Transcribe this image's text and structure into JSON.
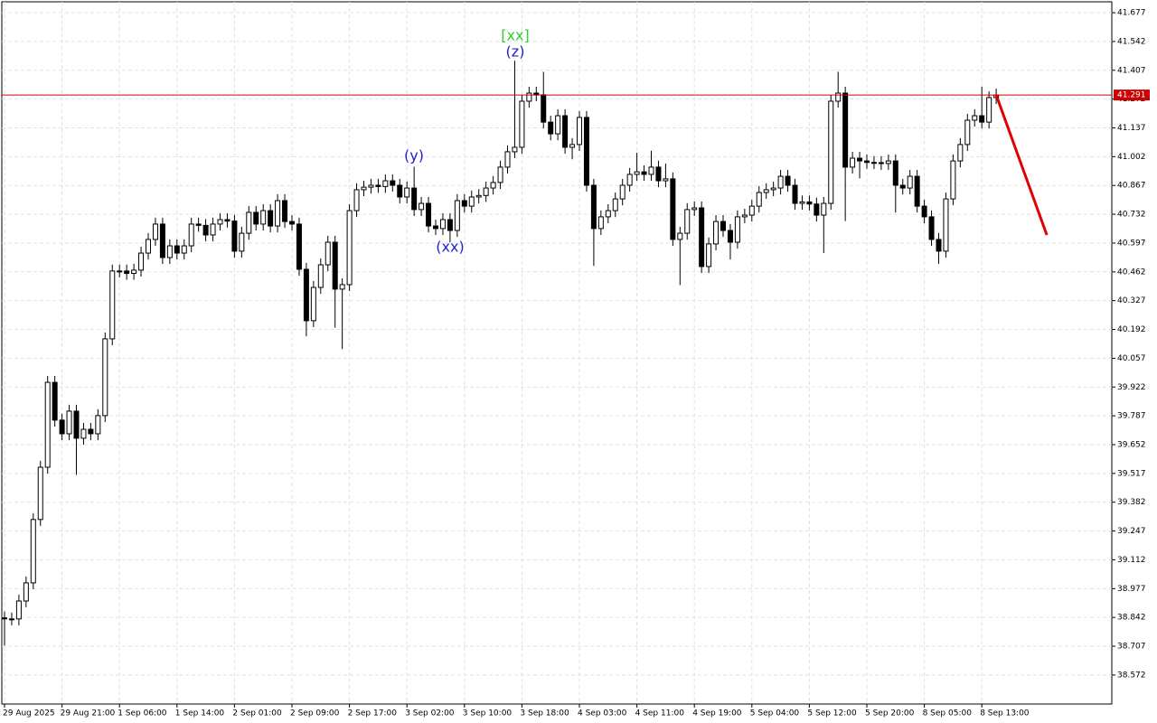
{
  "chart_data": {
    "type": "candlestick",
    "categories": [
      "29 Aug 2025",
      null,
      null,
      null,
      null,
      null,
      null,
      null,
      "29 Aug 21:00",
      null,
      null,
      null,
      null,
      null,
      null,
      null,
      "1 Sep 06:00",
      null,
      null,
      null,
      null,
      null,
      null,
      null,
      "1 Sep 14:00",
      null,
      null,
      null,
      null,
      null,
      null,
      null,
      "2 Sep 01:00",
      null,
      null,
      null,
      null,
      null,
      null,
      null,
      "2 Sep 09:00",
      null,
      null,
      null,
      null,
      null,
      null,
      null,
      "2 Sep 17:00",
      null,
      null,
      null,
      null,
      null,
      null,
      null,
      "3 Sep 02:00",
      null,
      null,
      null,
      null,
      null,
      null,
      null,
      "3 Sep 10:00",
      null,
      null,
      null,
      null,
      null,
      null,
      null,
      "3 Sep 18:00",
      null,
      null,
      null,
      null,
      null,
      null,
      null,
      "4 Sep 03:00",
      null,
      null,
      null,
      null,
      null,
      null,
      null,
      "4 Sep 11:00",
      null,
      null,
      null,
      null,
      null,
      null,
      null,
      "4 Sep 19:00",
      null,
      null,
      null,
      null,
      null,
      null,
      null,
      "5 Sep 04:00",
      null,
      null,
      null,
      null,
      null,
      null,
      null,
      "5 Sep 12:00",
      null,
      null,
      null,
      null,
      null,
      null,
      null,
      "5 Sep 20:00",
      null,
      null,
      null,
      null,
      null,
      null,
      null,
      "8 Sep 05:00",
      null,
      null,
      null,
      null,
      null,
      null,
      null,
      "8 Sep 13:00",
      null,
      null
    ],
    "open": [
      38.84,
      38.835,
      38.835,
      38.919,
      39.004,
      39.301,
      39.546,
      39.944,
      39.767,
      39.703,
      39.809,
      39.682,
      39.724,
      39.703,
      39.788,
      40.148,
      40.466,
      40.466,
      40.455,
      40.47,
      40.55,
      40.614,
      40.686,
      40.529,
      40.584,
      40.55,
      40.584,
      40.686,
      40.68,
      40.635,
      40.686,
      40.707,
      40.7,
      40.559,
      40.643,
      40.741,
      40.686,
      40.749,
      40.677,
      40.796,
      40.698,
      40.686,
      40.474,
      40.233,
      40.389,
      40.495,
      40.601,
      40.381,
      40.402,
      40.749,
      40.847,
      40.859,
      40.868,
      40.862,
      40.889,
      40.868,
      40.813,
      40.855,
      40.754,
      40.783,
      40.677,
      40.665,
      40.707,
      40.656,
      40.796,
      40.77,
      40.813,
      40.82,
      40.855,
      40.881,
      40.953,
      41.025,
      41.046,
      41.262,
      41.3,
      41.292,
      41.164,
      41.109,
      41.194,
      41.046,
      41.059,
      41.186,
      40.868,
      40.665,
      40.72,
      40.749,
      40.804,
      40.868,
      40.919,
      40.931,
      40.919,
      40.953,
      40.889,
      40.898,
      40.614,
      40.643,
      40.754,
      40.762,
      40.487,
      40.593,
      40.698,
      40.656,
      40.601,
      40.72,
      40.728,
      40.77,
      40.834,
      40.847,
      40.855,
      40.91,
      40.868,
      40.783,
      40.79,
      40.78,
      40.728,
      40.783,
      41.262,
      41.3,
      40.953,
      40.995,
      40.982,
      40.975,
      40.974,
      40.97,
      40.982,
      40.868,
      40.855,
      40.91,
      40.77,
      40.72,
      40.614,
      40.559,
      40.804,
      40.982,
      41.059,
      41.173,
      41.194,
      41.164,
      41.279
    ],
    "high": [
      38.87,
      38.865,
      38.949,
      39.034,
      39.331,
      39.576,
      39.974,
      39.974,
      39.797,
      39.839,
      39.839,
      39.754,
      39.754,
      39.818,
      40.178,
      40.496,
      40.496,
      40.496,
      40.5,
      40.58,
      40.644,
      40.716,
      40.716,
      40.614,
      40.614,
      40.614,
      40.716,
      40.716,
      40.71,
      40.716,
      40.737,
      40.737,
      40.73,
      40.673,
      40.771,
      40.771,
      40.779,
      40.779,
      40.826,
      40.826,
      40.728,
      40.716,
      40.504,
      40.419,
      40.525,
      40.631,
      40.631,
      40.432,
      40.779,
      40.877,
      40.889,
      40.898,
      40.898,
      40.919,
      40.919,
      40.898,
      40.885,
      40.955,
      40.813,
      40.813,
      40.707,
      40.737,
      40.737,
      40.826,
      40.826,
      40.843,
      40.85,
      40.885,
      40.911,
      40.983,
      41.055,
      41.452,
      41.292,
      41.33,
      41.33,
      41.4,
      41.194,
      41.224,
      41.224,
      41.089,
      41.216,
      41.216,
      40.898,
      40.75,
      40.779,
      40.834,
      40.898,
      40.949,
      41.02,
      40.961,
      41.03,
      40.983,
      40.97,
      40.928,
      40.673,
      40.784,
      40.792,
      40.792,
      40.623,
      40.728,
      40.728,
      40.686,
      40.75,
      40.758,
      40.8,
      40.864,
      40.877,
      40.885,
      40.94,
      40.94,
      40.898,
      40.82,
      40.82,
      40.81,
      40.813,
      41.292,
      41.4,
      41.33,
      41.025,
      41.025,
      41.012,
      41.005,
      41.004,
      41.012,
      41.012,
      40.898,
      40.94,
      40.94,
      40.8,
      40.75,
      40.644,
      40.834,
      41.012,
      41.089,
      41.203,
      41.224,
      41.33,
      41.309,
      41.321
    ],
    "low": [
      38.71,
      38.805,
      38.805,
      38.889,
      38.974,
      39.271,
      39.516,
      39.737,
      39.673,
      39.673,
      39.51,
      39.652,
      39.673,
      39.673,
      39.758,
      40.118,
      40.436,
      40.425,
      40.425,
      40.44,
      40.52,
      40.584,
      40.499,
      40.499,
      40.52,
      40.52,
      40.554,
      40.65,
      40.605,
      40.605,
      40.656,
      40.67,
      40.529,
      40.529,
      40.613,
      40.656,
      40.656,
      40.647,
      40.647,
      40.668,
      40.656,
      40.444,
      40.16,
      40.203,
      40.359,
      40.465,
      40.2,
      40.1,
      40.372,
      40.719,
      40.817,
      40.829,
      40.832,
      40.832,
      40.838,
      40.783,
      40.783,
      40.724,
      40.724,
      40.647,
      40.635,
      40.635,
      40.6,
      40.626,
      40.74,
      40.74,
      40.783,
      40.79,
      40.825,
      40.851,
      40.923,
      40.995,
      41.016,
      41.232,
      41.262,
      41.134,
      41.079,
      41.079,
      41.016,
      40.99,
      41.029,
      40.838,
      40.49,
      40.635,
      40.69,
      40.719,
      40.774,
      40.838,
      40.889,
      40.889,
      40.889,
      40.859,
      40.859,
      40.584,
      40.4,
      40.613,
      40.724,
      40.457,
      40.457,
      40.563,
      40.626,
      40.52,
      40.571,
      40.69,
      40.698,
      40.74,
      40.804,
      40.817,
      40.825,
      40.838,
      40.753,
      40.753,
      40.75,
      40.698,
      40.55,
      40.753,
      41.232,
      40.7,
      40.923,
      40.9,
      40.945,
      40.944,
      40.94,
      40.94,
      40.74,
      40.825,
      40.825,
      40.74,
      40.69,
      40.584,
      40.5,
      40.529,
      40.774,
      40.952,
      41.029,
      41.143,
      41.134,
      41.134,
      41.249
    ],
    "close": [
      38.835,
      38.835,
      38.919,
      39.004,
      39.301,
      39.546,
      39.944,
      39.767,
      39.703,
      39.809,
      39.682,
      39.724,
      39.703,
      39.788,
      40.148,
      40.466,
      40.466,
      40.455,
      40.47,
      40.55,
      40.614,
      40.686,
      40.529,
      40.584,
      40.55,
      40.584,
      40.686,
      40.68,
      40.635,
      40.686,
      40.707,
      40.7,
      40.559,
      40.643,
      40.741,
      40.686,
      40.749,
      40.677,
      40.796,
      40.698,
      40.686,
      40.474,
      40.233,
      40.389,
      40.495,
      40.601,
      40.381,
      40.402,
      40.749,
      40.847,
      40.859,
      40.868,
      40.862,
      40.889,
      40.868,
      40.813,
      40.855,
      40.754,
      40.783,
      40.677,
      40.665,
      40.707,
      40.656,
      40.796,
      40.77,
      40.813,
      40.82,
      40.855,
      40.881,
      40.953,
      41.025,
      41.046,
      41.262,
      41.3,
      41.292,
      41.164,
      41.109,
      41.194,
      41.046,
      41.059,
      41.186,
      40.868,
      40.665,
      40.72,
      40.749,
      40.804,
      40.868,
      40.919,
      40.931,
      40.919,
      40.953,
      40.889,
      40.898,
      40.614,
      40.643,
      40.754,
      40.762,
      40.487,
      40.593,
      40.698,
      40.656,
      40.601,
      40.72,
      40.728,
      40.77,
      40.834,
      40.847,
      40.855,
      40.91,
      40.868,
      40.783,
      40.79,
      40.78,
      40.728,
      40.783,
      41.262,
      41.3,
      40.953,
      40.995,
      40.982,
      40.975,
      40.974,
      40.97,
      40.982,
      40.868,
      40.855,
      40.91,
      40.77,
      40.72,
      40.614,
      40.559,
      40.804,
      40.982,
      41.059,
      41.173,
      41.194,
      41.164,
      41.279,
      41.291
    ],
    "ylim": [
      38.436,
      41.728
    ],
    "yticks": [
      41.677,
      41.542,
      41.407,
      41.272,
      41.137,
      41.002,
      40.867,
      40.732,
      40.597,
      40.462,
      40.327,
      40.192,
      40.057,
      39.922,
      39.787,
      39.652,
      39.517,
      39.382,
      39.247,
      39.112,
      38.977,
      38.842,
      38.707,
      38.572
    ],
    "grid": true,
    "price_line": {
      "value": 41.291,
      "color": "#cc0000"
    },
    "forecast": {
      "color": "#e00000",
      "values": [
        41.291,
        40.635
      ]
    },
    "annotations": [
      {
        "text": "[xx]",
        "color": "#33cc33"
      },
      {
        "text": "(z)",
        "color": "#2222cc"
      },
      {
        "text": "(y)",
        "color": "#2222cc"
      },
      {
        "text": "(xx)",
        "color": "#2222cc"
      }
    ]
  }
}
